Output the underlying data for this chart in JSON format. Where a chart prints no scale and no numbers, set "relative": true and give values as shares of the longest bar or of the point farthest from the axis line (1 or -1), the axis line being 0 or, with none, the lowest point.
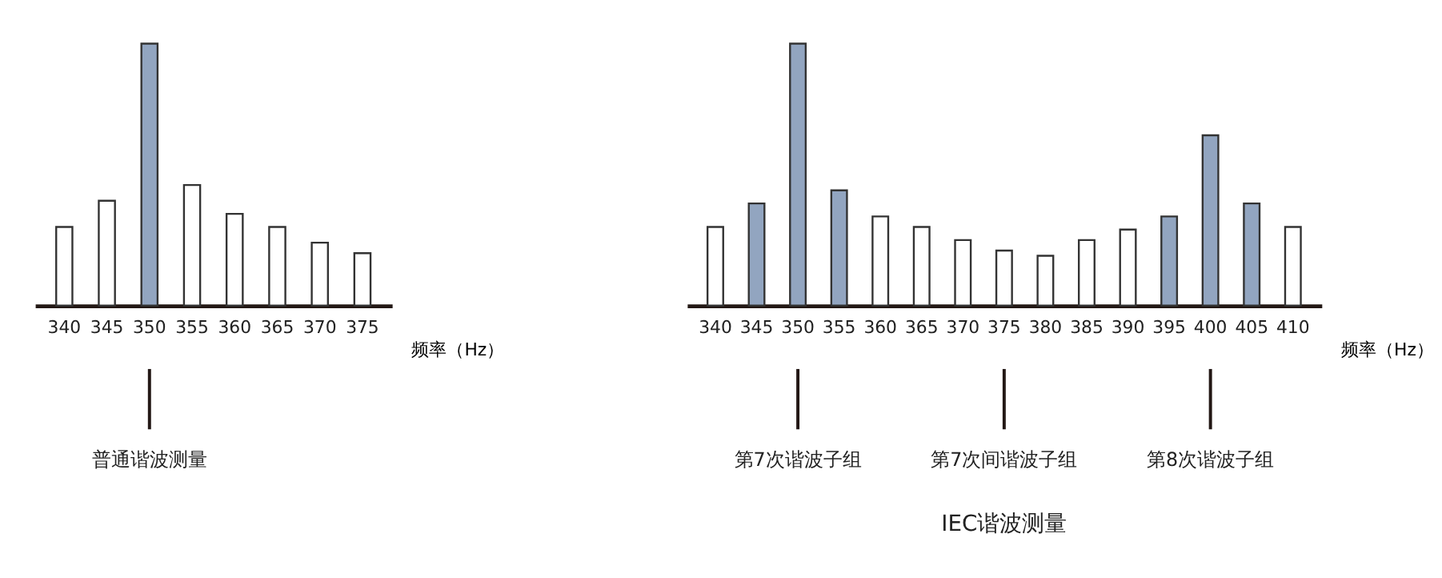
{
  "chart_data": [
    {
      "type": "bar",
      "relative": true,
      "xlabel": "频率（Hz）",
      "categories": [
        "340",
        "345",
        "350",
        "355",
        "360",
        "365",
        "370",
        "375"
      ],
      "values": [
        0.3,
        0.4,
        1,
        0.46,
        0.35,
        0.3,
        0.24,
        0.2
      ],
      "colors": [
        "#ffffff",
        "#ffffff",
        "#92a5c0",
        "#ffffff",
        "#ffffff",
        "#ffffff",
        "#ffffff",
        "#ffffff"
      ],
      "annotations": [
        {
          "text": "普通谐波测量",
          "x": "350"
        }
      ]
    },
    {
      "type": "bar",
      "relative": true,
      "title": "IEC谐波测量",
      "xlabel": "频率（Hz）",
      "categories": [
        "340",
        "345",
        "350",
        "355",
        "360",
        "365",
        "370",
        "375",
        "380",
        "385",
        "390",
        "395",
        "400",
        "405",
        "410"
      ],
      "values": [
        0.3,
        0.39,
        1,
        0.44,
        0.34,
        0.3,
        0.25,
        0.21,
        0.19,
        0.25,
        0.29,
        0.34,
        0.65,
        0.39,
        0.3
      ],
      "colors": [
        "#ffffff",
        "#92a5c0",
        "#92a5c0",
        "#92a5c0",
        "#ffffff",
        "#ffffff",
        "#ffffff",
        "#ffffff",
        "#ffffff",
        "#ffffff",
        "#ffffff",
        "#92a5c0",
        "#92a5c0",
        "#92a5c0",
        "#ffffff"
      ],
      "annotations": [
        {
          "text": "第7次谐波子组",
          "x": "350"
        },
        {
          "text": "第7次间谐波子组",
          "x": "375"
        },
        {
          "text": "第8次谐波子组",
          "x": "400"
        }
      ]
    }
  ]
}
